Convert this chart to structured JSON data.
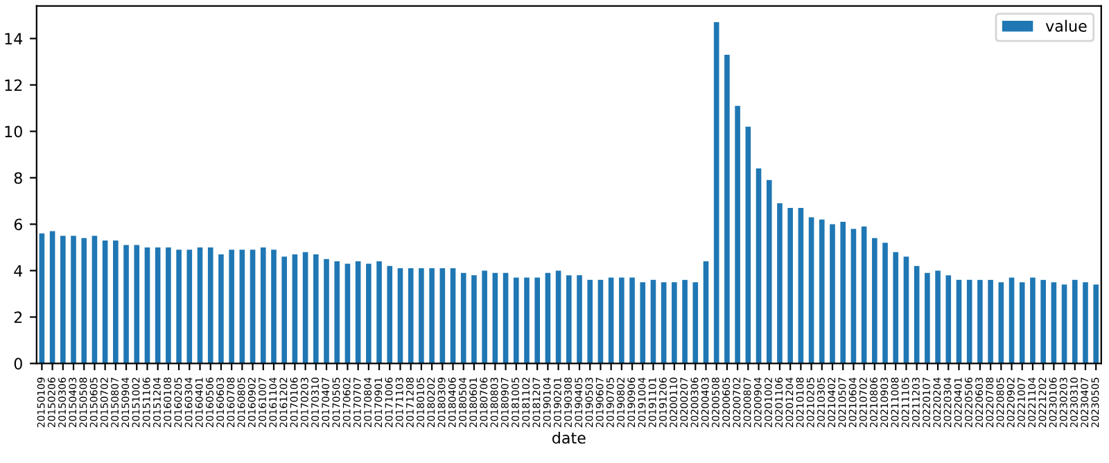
{
  "chart_data": {
    "type": "bar",
    "xlabel": "date",
    "categories": [
      "20150109",
      "20150206",
      "20150306",
      "20150403",
      "20150508",
      "20150605",
      "20150702",
      "20150807",
      "20150904",
      "20151002",
      "20151106",
      "20151204",
      "20160108",
      "20160205",
      "20160304",
      "20160401",
      "20160506",
      "20160603",
      "20160708",
      "20160805",
      "20160902",
      "20161007",
      "20161104",
      "20161202",
      "20170106",
      "20170203",
      "20170310",
      "20170407",
      "20170505",
      "20170602",
      "20170707",
      "20170804",
      "20170901",
      "20171006",
      "20171103",
      "20171208",
      "20180105",
      "20180202",
      "20180309",
      "20180406",
      "20180504",
      "20180601",
      "20180706",
      "20180803",
      "20180907",
      "20181005",
      "20181102",
      "20181207",
      "20190104",
      "20190201",
      "20190308",
      "20190405",
      "20190503",
      "20190607",
      "20190705",
      "20190802",
      "20190906",
      "20191004",
      "20191101",
      "20191206",
      "20200110",
      "20200207",
      "20200306",
      "20200403",
      "20200508",
      "20200605",
      "20200702",
      "20200807",
      "20200904",
      "20201002",
      "20201106",
      "20201204",
      "20210108",
      "20210205",
      "20210305",
      "20210402",
      "20210507",
      "20210604",
      "20210702",
      "20210806",
      "20210903",
      "20211008",
      "20211105",
      "20211203",
      "20220107",
      "20220204",
      "20220304",
      "20220401",
      "20220506",
      "20220603",
      "20220708",
      "20220805",
      "20220902",
      "20221007",
      "20221104",
      "20221202",
      "20230106",
      "20230203",
      "20230310",
      "20230407",
      "20230505"
    ],
    "series": [
      {
        "name": "value",
        "color": "#1f77b4",
        "values": [
          5.6,
          5.7,
          5.5,
          5.5,
          5.4,
          5.5,
          5.3,
          5.3,
          5.1,
          5.1,
          5.0,
          5.0,
          5.0,
          4.9,
          4.9,
          5.0,
          5.0,
          4.7,
          4.9,
          4.9,
          4.9,
          5.0,
          4.9,
          4.6,
          4.7,
          4.8,
          4.7,
          4.5,
          4.4,
          4.3,
          4.4,
          4.3,
          4.4,
          4.2,
          4.1,
          4.1,
          4.1,
          4.1,
          4.1,
          4.1,
          3.9,
          3.8,
          4.0,
          3.9,
          3.9,
          3.7,
          3.7,
          3.7,
          3.9,
          4.0,
          3.8,
          3.8,
          3.6,
          3.6,
          3.7,
          3.7,
          3.7,
          3.5,
          3.6,
          3.5,
          3.5,
          3.6,
          3.5,
          4.4,
          14.7,
          13.3,
          11.1,
          10.2,
          8.4,
          7.9,
          6.9,
          6.7,
          6.7,
          6.3,
          6.2,
          6.0,
          6.1,
          5.8,
          5.9,
          5.4,
          5.2,
          4.8,
          4.6,
          4.2,
          3.9,
          4.0,
          3.8,
          3.6,
          3.6,
          3.6,
          3.6,
          3.5,
          3.7,
          3.5,
          3.7,
          3.6,
          3.5,
          3.4,
          3.6,
          3.5,
          3.4
        ]
      }
    ],
    "ylim": [
      0,
      15.4
    ],
    "yticks": [
      0,
      2,
      4,
      6,
      8,
      10,
      12,
      14
    ],
    "grid": false,
    "legend": "top right"
  }
}
